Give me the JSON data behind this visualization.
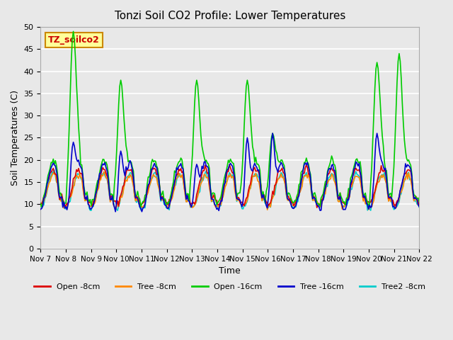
{
  "title": "Tonzi Soil CO2 Profile: Lower Temperatures",
  "xlabel": "Time",
  "ylabel": "Soil Temperatures (C)",
  "ylim": [
    0,
    50
  ],
  "yticks": [
    0,
    5,
    10,
    15,
    20,
    25,
    30,
    35,
    40,
    45,
    50
  ],
  "background_color": "#e8e8e8",
  "plot_bg_color": "#e8e8e8",
  "grid_color": "#ffffff",
  "annotation_text": "TZ_soilco2",
  "annotation_bg": "#ffff99",
  "annotation_border": "#cc8800",
  "annotation_text_color": "#cc0000",
  "legend_entries": [
    "Open -8cm",
    "Tree -8cm",
    "Open -16cm",
    "Tree -16cm",
    "Tree2 -8cm"
  ],
  "line_colors": [
    "#dd0000",
    "#ff8800",
    "#00cc00",
    "#0000cc",
    "#00cccc"
  ],
  "x_tick_labels": [
    "Nov 7",
    "Nov 8",
    "Nov 9",
    "Nov 10",
    "Nov 11",
    "Nov 12",
    "Nov 13",
    "Nov 14",
    "Nov 15",
    "Nov 16",
    "Nov 17",
    "Nov 18",
    "Nov 19",
    "Nov 20",
    "Nov 21",
    "Nov 22"
  ],
  "n_days": 15,
  "points_per_day": 24,
  "seed": 42
}
